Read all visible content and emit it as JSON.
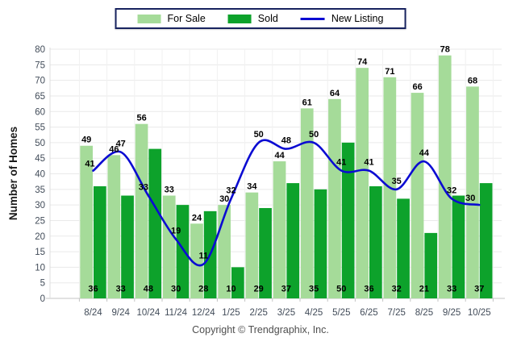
{
  "chart_data": {
    "type": "bar",
    "categories": [
      "8/24",
      "9/24",
      "10/24",
      "11/24",
      "12/24",
      "1/25",
      "2/25",
      "3/25",
      "4/25",
      "5/25",
      "6/25",
      "7/25",
      "8/25",
      "9/25",
      "10/25"
    ],
    "series": [
      {
        "name": "For Sale",
        "type": "bar",
        "color": "#a5db99",
        "values": [
          49,
          46,
          56,
          33,
          24,
          30,
          34,
          44,
          61,
          64,
          74,
          71,
          66,
          78,
          68
        ]
      },
      {
        "name": "Sold",
        "type": "bar",
        "color": "#0da22b",
        "values": [
          36,
          33,
          48,
          30,
          28,
          10,
          29,
          37,
          35,
          50,
          36,
          32,
          21,
          33,
          37
        ]
      },
      {
        "name": "New Listing",
        "type": "line",
        "color": "#0b0bd2",
        "values": [
          41,
          47,
          33,
          19,
          11,
          32,
          50,
          48,
          50,
          41,
          41,
          35,
          44,
          32,
          30
        ]
      }
    ],
    "title": "",
    "xlabel": "",
    "ylabel": "Number of Homes",
    "ylim": [
      0,
      80
    ],
    "ytick_step": 5,
    "grid": true,
    "legend_position": "top-center",
    "colors": {
      "grid_h": "#eaeaea",
      "grid_v": "#f1f1f1",
      "axis": "#c4c4c4",
      "tick_text": "#424c59",
      "value_label": "#000000",
      "legend_border": "#18235f"
    }
  },
  "footer": {
    "copyright": "Copyright © Trendgraphix, Inc."
  }
}
